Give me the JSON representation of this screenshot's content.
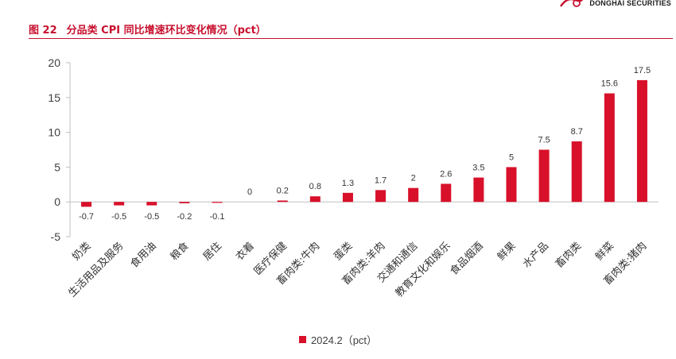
{
  "header": {
    "brand_text": "DONGHAI SECURITIES",
    "figure_number": "图 22",
    "figure_title": "分品类 CPI 同比增速环比变化情况（pct）"
  },
  "colors": {
    "accent": "#c8102e",
    "bar": "#d8102a",
    "axis": "#bfbfbf",
    "text": "#404040"
  },
  "chart_data": {
    "type": "bar",
    "categories": [
      "奶类",
      "生活用品及服务",
      "食用油",
      "粮食",
      "居住",
      "衣着",
      "医疗保健",
      "畜肉类:牛肉",
      "蛋类",
      "畜肉类:羊肉",
      "交通和通信",
      "教育文化和娱乐",
      "食品烟酒",
      "鲜果",
      "水产品",
      "畜肉类",
      "鲜菜",
      "畜肉类:猪肉"
    ],
    "series": [
      {
        "name": "2024.2（pct）",
        "values": [
          -0.7,
          -0.5,
          -0.5,
          -0.2,
          -0.1,
          0,
          0.2,
          0.8,
          1.3,
          1.7,
          2,
          2.6,
          3.5,
          5,
          7.5,
          8.7,
          15.6,
          17.5
        ],
        "labels": [
          "-0.7",
          "-0.5",
          "-0.5",
          "-0.2",
          "-0.1",
          "0",
          "0.2",
          "0.8",
          "1.3",
          "1.7",
          "2",
          "2.6",
          "3.5",
          "5",
          "7.5",
          "8.7",
          "15.6",
          "17.5"
        ]
      }
    ],
    "ylim": [
      -5,
      20
    ],
    "yticks": [
      -5,
      0,
      5,
      10,
      15,
      20
    ],
    "ytick_labels": [
      "-5",
      "0",
      "5",
      "10",
      "15",
      "20"
    ],
    "grid": false,
    "legend_position": "bottom"
  }
}
